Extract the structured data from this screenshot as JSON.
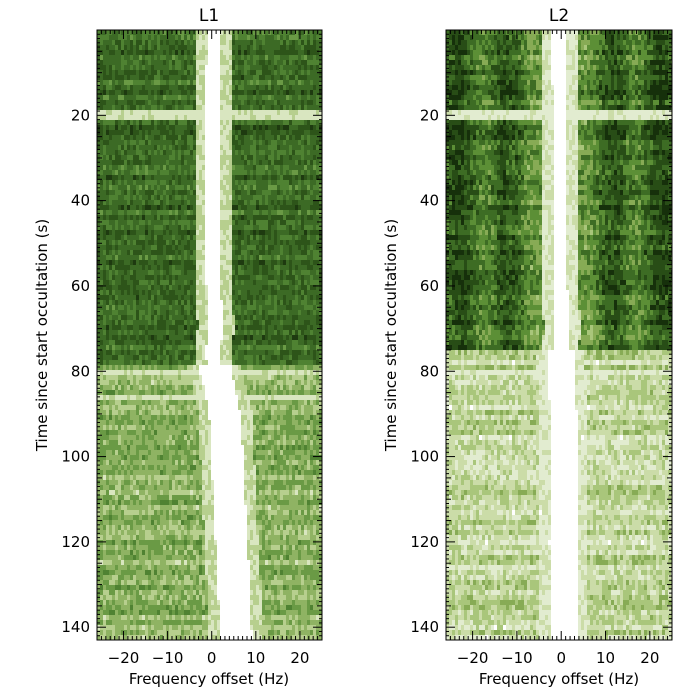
{
  "chart_data": [
    {
      "type": "heatmap",
      "title": "L1",
      "xlabel": "Frequency offset (Hz)",
      "ylabel": "Time since start occultation (s)",
      "xlim": [
        -26,
        25
      ],
      "ylim": [
        143,
        0
      ],
      "x_ticks": [
        -20,
        -10,
        0,
        10,
        20
      ],
      "x_tick_labels": [
        "−20",
        "−10",
        "0",
        "10",
        "20"
      ],
      "y_ticks": [
        20,
        40,
        60,
        80,
        100,
        120,
        140
      ],
      "y_tick_labels": [
        "20",
        "40",
        "60",
        "80",
        "100",
        "120",
        "140"
      ],
      "colormap": [
        "#ffffff",
        "#d9e6c0",
        "#b7cf8e",
        "#8fb363",
        "#6a9a45",
        "#4f8232",
        "#3c6a25",
        "#2d5419",
        "#1e3a10"
      ],
      "signal_track": [
        [
          0,
          0.5
        ],
        [
          20,
          0.3
        ],
        [
          40,
          0.2
        ],
        [
          60,
          0.4
        ],
        [
          70,
          1.0
        ],
        [
          76,
          0.2
        ],
        [
          80,
          1.0
        ],
        [
          90,
          3.0
        ],
        [
          110,
          4.0
        ],
        [
          130,
          5.0
        ],
        [
          143,
          5.5
        ]
      ],
      "annotations": [
        {
          "time": 20,
          "description": "horizontal bright streak"
        },
        {
          "time": 80,
          "description": "horizontal bright streak"
        },
        {
          "time": 86,
          "description": "horizontal bright streak"
        }
      ]
    },
    {
      "type": "heatmap",
      "title": "L2",
      "xlabel": "Frequency offset (Hz)",
      "ylabel": "Time since start occultation (s)",
      "xlim": [
        -26,
        25
      ],
      "ylim": [
        143,
        0
      ],
      "x_ticks": [
        -20,
        -10,
        0,
        10,
        20
      ],
      "x_tick_labels": [
        "−20",
        "−10",
        "0",
        "10",
        "20"
      ],
      "y_ticks": [
        20,
        40,
        60,
        80,
        100,
        120,
        140
      ],
      "y_tick_labels": [
        "20",
        "40",
        "60",
        "80",
        "100",
        "120",
        "140"
      ],
      "colormap": [
        "#ffffff",
        "#e2ecd0",
        "#cbdca8",
        "#a9c67b",
        "#87ab55",
        "#5c8f36",
        "#3d6c24",
        "#284d16",
        "#16300b"
      ],
      "signal_track": [
        [
          0,
          -0.5
        ],
        [
          20,
          -0.3
        ],
        [
          40,
          -0.3
        ],
        [
          60,
          -0.2
        ],
        [
          70,
          0.2
        ],
        [
          76,
          -0.2
        ],
        [
          80,
          0.0
        ],
        [
          90,
          0.5
        ],
        [
          110,
          0.5
        ],
        [
          130,
          0.6
        ],
        [
          143,
          0.5
        ]
      ],
      "annotations": [
        {
          "time": 20,
          "description": "horizontal bright streak"
        },
        {
          "time": 75,
          "description": "transition from dark to light background"
        },
        {
          "time": 80,
          "description": "horizontal bright streak"
        }
      ]
    }
  ]
}
